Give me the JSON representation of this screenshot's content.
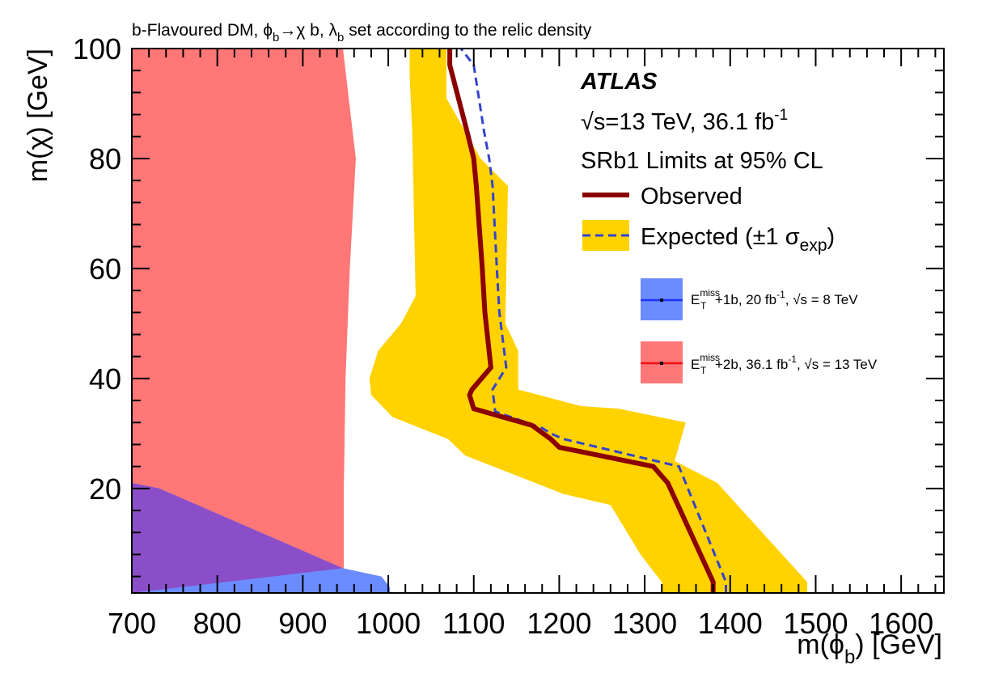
{
  "chart_data": {
    "type": "area",
    "title": "b-Flavoured DM, ϕb→χ b, λb set according to the relic density",
    "title_parts": {
      "text1": "b-Flavoured DM, ",
      "phi": "ϕ",
      "phi_sub": "b",
      "arrow_chi": "→χ b, ",
      "lambda": "λ",
      "lambda_sub": "b",
      "text2": " set according to the relic density"
    },
    "xlabel": "m(ϕb) [GeV]",
    "xlabel_parts": {
      "pre": "m(ϕ",
      "sub": "b",
      "post": ") [GeV]"
    },
    "ylabel": "m(χ) [GeV]",
    "xlim": [
      700,
      1650
    ],
    "ylim": [
      1,
      100
    ],
    "x_ticks": [
      700,
      800,
      900,
      1000,
      1100,
      1200,
      1300,
      1400,
      1500,
      1600
    ],
    "x_tick_labels": [
      "700",
      "800",
      "900",
      "1000",
      "1100",
      "1200",
      "1300",
      "1400",
      "1500",
      "1600"
    ],
    "y_ticks": [
      20,
      40,
      60,
      80,
      100
    ],
    "y_tick_labels": [
      "20",
      "40",
      "60",
      "80",
      "100"
    ],
    "experiment": "ATLAS",
    "energy_lumi": {
      "sqrt": "√",
      "text": "s=13 TeV, 36.1 fb",
      "sup": "-1"
    },
    "region_label": "SRb1  Limits at 95% CL",
    "legend": {
      "observed": "Observed",
      "expected_pre": "Expected (±1 ",
      "expected_sigma": "σ",
      "expected_sub": "exp",
      "expected_post": ")",
      "prev1": {
        "e": "E",
        "sup": "miss",
        "sub": "T",
        "text1": "+1b, 20 fb",
        "lumi_sup": "-1",
        "text2": ", √s = 8 TeV"
      },
      "prev2": {
        "e": "E",
        "sup": "miss",
        "sub": "T",
        "text1": "+2b, 36.1 fb",
        "lumi_sup": "-1",
        "text2": ", √s = 13 TeV"
      }
    },
    "colors": {
      "observed": "#8b0000",
      "expected_band": "#ffd200",
      "expected_line": "#3344cc",
      "prev_8tev": "#6b8cff",
      "prev_13tev": "#ff7777",
      "overlap": "#8a4fc8",
      "legend_blue_line": "#1a33ff",
      "legend_red_line": "#ee1111"
    },
    "series": [
      {
        "name": "Observed",
        "x": [
          1380,
          1380,
          1327,
          1310,
          1200,
          1190,
          1168,
          1100,
          1095,
          1098,
          1120,
          1113,
          1110,
          1103,
          1100,
          1092,
          1072,
          1072
        ],
        "y": [
          1,
          3,
          21,
          24,
          27.5,
          29,
          31.5,
          34.5,
          37,
          38,
          42,
          52,
          60,
          75,
          80,
          85,
          97,
          100
        ]
      },
      {
        "name": "Expected",
        "x": [
          1395,
          1395,
          1340,
          1205,
          1190,
          1180,
          1125,
          1122,
          1138,
          1130,
          1127,
          1122,
          1118,
          1112,
          1100,
          1085,
          1085
        ],
        "y": [
          1,
          3,
          24,
          29,
          30,
          31,
          34,
          38,
          42,
          52,
          60,
          75,
          80,
          85,
          97,
          100,
          100
        ]
      },
      {
        "name": "Expected +1σ",
        "x": [
          1490,
          1490,
          1385,
          1335,
          1348,
          1270,
          1225,
          1152,
          1152,
          1137,
          1140,
          1108,
          1068,
          1068
        ],
        "y": [
          1,
          3,
          21,
          25,
          32,
          34.5,
          35,
          38,
          45,
          50,
          75,
          80,
          91,
          100
        ]
      },
      {
        "name": "Expected -1σ",
        "x": [
          1025,
          1025,
          1028,
          1032,
          1015,
          988,
          978,
          980,
          1005,
          1070,
          1090,
          1205,
          1260,
          1295,
          1320,
          1320
        ],
        "y": [
          100,
          95,
          85,
          55,
          50,
          45,
          40,
          37,
          33,
          29,
          26,
          19,
          17,
          8,
          3,
          1
        ]
      },
      {
        "name": "ETmiss+2b, 36.1 fb-1, √s = 13 TeV (excluded)",
        "x": [
          700,
          947,
          962,
          955,
          950,
          948,
          948,
          700
        ],
        "y": [
          100,
          100,
          80,
          60,
          40,
          20,
          1,
          1
        ]
      },
      {
        "name": "ETmiss+1b, 20 fb-1, √s = 8 TeV (excluded)",
        "x": [
          700,
          700,
          732,
          947,
          992,
          1002,
          1002
        ],
        "y": [
          1,
          21,
          20,
          5.5,
          4,
          2,
          1
        ]
      }
    ]
  }
}
